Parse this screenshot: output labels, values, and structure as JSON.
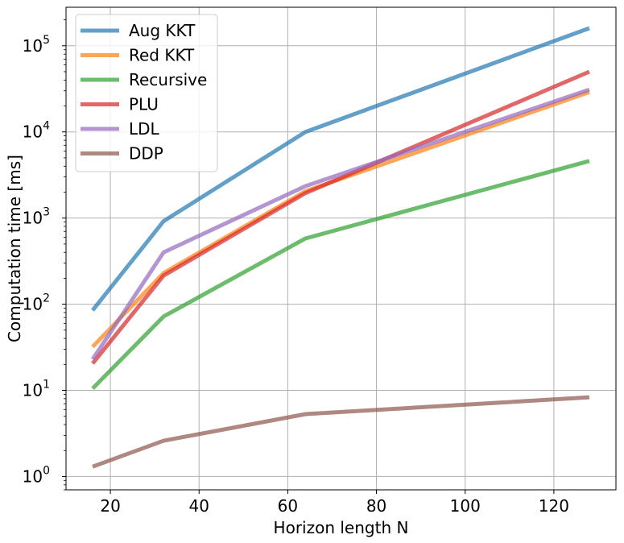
{
  "chart_data": {
    "type": "line",
    "title": "",
    "xlabel": "Horizon length N",
    "ylabel": "Computation time [ms]",
    "x": [
      16,
      32,
      64,
      128
    ],
    "xlim": [
      10,
      134
    ],
    "ylim": [
      0.7,
      280000
    ],
    "yscale": "log",
    "grid": true,
    "legend": "top-left",
    "xticks": [
      20,
      40,
      60,
      80,
      100,
      120
    ],
    "yticks": [
      {
        "value": 1,
        "base": "10",
        "exp": "0"
      },
      {
        "value": 10,
        "base": "10",
        "exp": "1"
      },
      {
        "value": 100,
        "base": "10",
        "exp": "2"
      },
      {
        "value": 1000,
        "base": "10",
        "exp": "3"
      },
      {
        "value": 10000,
        "base": "10",
        "exp": "4"
      },
      {
        "value": 100000,
        "base": "10",
        "exp": "5"
      }
    ],
    "series": [
      {
        "name": "Aug KKT",
        "color": "#1f77b4",
        "values": [
          85,
          920,
          10000,
          160000
        ]
      },
      {
        "name": "Red KKT",
        "color": "#ff7f0e",
        "values": [
          32,
          230,
          2050,
          29000
        ]
      },
      {
        "name": "Recursive",
        "color": "#2ca02c",
        "values": [
          10.5,
          72,
          580,
          4600
        ]
      },
      {
        "name": "PLU",
        "color": "#d62728",
        "values": [
          20.5,
          215,
          1950,
          50000
        ]
      },
      {
        "name": "LDL",
        "color": "#9467bd",
        "values": [
          23,
          400,
          2350,
          31000
        ]
      },
      {
        "name": "DDP",
        "color": "#8c564b",
        "values": [
          1.3,
          2.6,
          5.3,
          8.3
        ]
      }
    ]
  }
}
